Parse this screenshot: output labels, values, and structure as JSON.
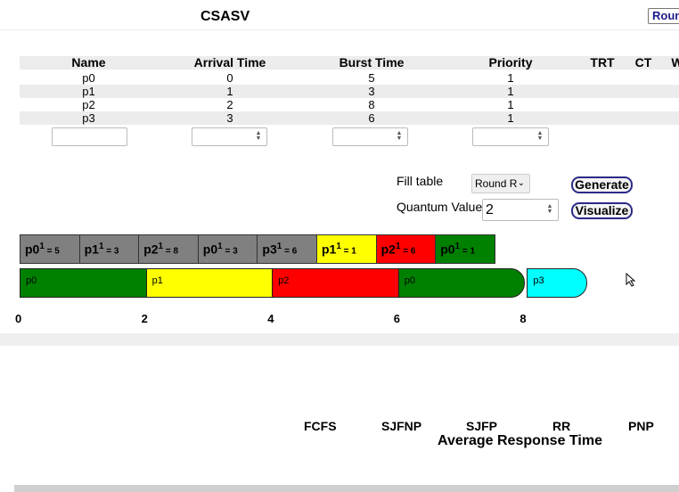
{
  "app": {
    "title": "CSASV",
    "top_button": "Roun"
  },
  "table": {
    "headers": [
      "Name",
      "Arrival Time",
      "Burst Time",
      "Priority",
      "TRT",
      "CT",
      "W"
    ],
    "rows": [
      [
        "p0",
        "0",
        "5",
        "1"
      ],
      [
        "p1",
        "1",
        "3",
        "1"
      ],
      [
        "p2",
        "2",
        "8",
        "1"
      ],
      [
        "p3",
        "3",
        "6",
        "1"
      ]
    ]
  },
  "controls": {
    "fill_label": "Fill table",
    "algorithm_select": "Round R",
    "quantum_label": "Quantum Value",
    "quantum_value": "2",
    "generate": "Generate",
    "visualize": "Visualize"
  },
  "queue": [
    {
      "name": "p0",
      "sup": "1",
      "remaining": "= 5",
      "color": "#808080"
    },
    {
      "name": "p1",
      "sup": "1",
      "remaining": "= 3",
      "color": "#808080"
    },
    {
      "name": "p2",
      "sup": "1",
      "remaining": "= 8",
      "color": "#808080"
    },
    {
      "name": "p0",
      "sup": "1",
      "remaining": "= 3",
      "color": "#808080"
    },
    {
      "name": "p3",
      "sup": "1",
      "remaining": "= 6",
      "color": "#808080"
    },
    {
      "name": "p1",
      "sup": "1",
      "remaining": "= 1",
      "color": "#ffff00"
    },
    {
      "name": "p2",
      "sup": "1",
      "remaining": "= 6",
      "color": "#ff0000"
    },
    {
      "name": "p0",
      "sup": "1",
      "remaining": "= 1",
      "color": "#008000"
    }
  ],
  "gantt": [
    {
      "label": "p0",
      "start": 0,
      "end": 2,
      "color": "#008000"
    },
    {
      "label": "p1",
      "start": 2,
      "end": 4,
      "color": "#ffff00"
    },
    {
      "label": "p2",
      "start": 4,
      "end": 6,
      "color": "#ff0000"
    },
    {
      "label": "p0",
      "start": 6,
      "end": 8,
      "color": "#008000"
    },
    {
      "label": "p3",
      "start": 8,
      "end": 10,
      "color": "#00ffff"
    }
  ],
  "ticks": [
    "0",
    "2",
    "4",
    "6",
    "8"
  ],
  "results": {
    "algorithms": [
      "FCFS",
      "SJFNP",
      "SJFP",
      "RR",
      "PNP"
    ],
    "caption": "Average Response Time"
  }
}
